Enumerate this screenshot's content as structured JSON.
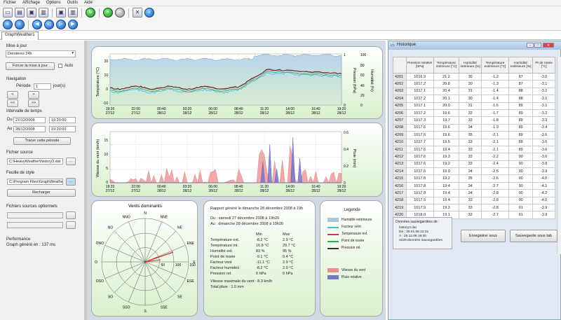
{
  "menu": [
    "Fichier",
    "Affichage",
    "Options",
    "Outils",
    "Aide"
  ],
  "tab": {
    "label": "GraphWeather1"
  },
  "left": {
    "mise_a_jour": "Mise à jour",
    "periode_select": "Dernières 24h",
    "forcer": "Forcer la mise à jour",
    "auto": "Auto",
    "navigation": "Navigation",
    "periode_label": "Période",
    "periode_value": "1",
    "periode_unit": "jour(s)",
    "nav_buttons": [
      "<",
      ">",
      "<<",
      ">>"
    ],
    "intervalle": "Intervalle de temps",
    "du_label": "Du",
    "du_date": "27/12/2008",
    "du_time": "19:20:00",
    "au_label": "Au",
    "au_date": "28/12/2008",
    "au_time": "19:20:00",
    "tracer": "Tracer cette période",
    "fichier_source": "Fichier source",
    "fichier_source_value": "C:\\HeavyWeather\\history3.dat",
    "feuille_style": "Feuille de style",
    "feuille_style_value": "C:\\Program Files\\GraphWeather",
    "recharger": "Recharger",
    "optionnels": "Fichiers sources optionnels",
    "performance": "Performance",
    "perf_value": "Graph généré en : 137 ms"
  },
  "chart1": {
    "ylabel_left": "Température (°C)",
    "ylabel_right1": "Pression (hPa)",
    "ylabel_right2": "Humidité (%)",
    "yticks_left": [
      "20",
      "10",
      "0",
      "-10"
    ],
    "yticks_right1": [
      "1",
      "0"
    ],
    "yticks_right2": [
      "100",
      "80",
      "60",
      "40",
      "20",
      "0"
    ],
    "xticks": [
      [
        "19:20",
        "27/12"
      ],
      [
        "22:00",
        "27/12"
      ],
      [
        "00:40",
        "28/12"
      ],
      [
        "03:20",
        "28/12"
      ],
      [
        "06:00",
        "28/12"
      ],
      [
        "08:40",
        "28/12"
      ],
      [
        "11:20",
        "28/12"
      ],
      [
        "14:00",
        "28/12"
      ],
      [
        "16:40",
        "28/12"
      ],
      [
        "19:20",
        "28/12"
      ]
    ]
  },
  "chart2": {
    "ylabel_left": "Vitesse du vent (km/h)",
    "ylabel_right": "Pluie (mm)",
    "yticks_left": [
      "15",
      "10",
      "5",
      "0"
    ],
    "yticks_right": [
      "0.6",
      "0.4",
      "0.2",
      "0"
    ],
    "xticks": [
      [
        "19:20",
        "27/12"
      ],
      [
        "22:00",
        "27/12"
      ],
      [
        "00:40",
        "28/12"
      ],
      [
        "03:20",
        "28/12"
      ],
      [
        "06:00",
        "28/12"
      ],
      [
        "08:40",
        "28/12"
      ],
      [
        "11:20",
        "28/12"
      ],
      [
        "14:00",
        "28/12"
      ],
      [
        "16:40",
        "28/12"
      ],
      [
        "19:20",
        "28/12"
      ]
    ]
  },
  "wind": {
    "title": "Vents dominants",
    "dirs": [
      "N",
      "NNE",
      "NE",
      "ENE",
      "E",
      "ESE",
      "SE",
      "SSE",
      "S",
      "SSO",
      "SO",
      "OSO",
      "O",
      "ONO",
      "NO",
      "NNO"
    ],
    "rings": [
      "50",
      "100",
      "150"
    ]
  },
  "report": {
    "title": "Rapport généré le dimanche 28 décembre 2008 à 19h",
    "du": "Du : samedi 27 décembre 2008 à 19h20",
    "au": "Au : dimanche 28 décembre 2008 à 19h20",
    "col_min": "Min",
    "col_max": "Max",
    "rows": [
      {
        "label": "Température ext.",
        "min": "-8.2 °C",
        "max": "2.9 °C"
      },
      {
        "label": "Température int.",
        "min": "16.8 °C",
        "max": "29.7 °C"
      },
      {
        "label": "Humidité ext.",
        "min": "83 %",
        "max": "95 %"
      },
      {
        "label": "Point de rosée",
        "min": "-9.1 °C",
        "max": "0.4 °C"
      },
      {
        "label": "Facteur vent",
        "min": "-11.1 °C",
        "max": "2.9 °C"
      },
      {
        "label": "Facteur humidex",
        "min": "-8.2 °C",
        "max": "2.9 °C"
      },
      {
        "label": "Pression rel.",
        "min": "0 hPa",
        "max": "0 hPa"
      }
    ],
    "vent_max": "Vitesse maximale du vent : 8.3 km/h",
    "pluie": "Total pluie : 1.0 mm"
  },
  "legend": {
    "title": "Legende",
    "items": [
      {
        "label": "Humidité extérieure",
        "color": "#a8c8e0"
      },
      {
        "label": "Facteur vent",
        "color": "#44bbdd"
      },
      {
        "label": "Température ext.",
        "color": "#cc3355"
      },
      {
        "label": "Point de rosée",
        "color": "#33aa55"
      },
      {
        "label": "Pression rel.",
        "color": "#333333"
      },
      {
        "label": "Vitesse du vent",
        "color": "#e89090"
      },
      {
        "label": "Pluie relative",
        "color": "#7777cc"
      }
    ]
  },
  "historique": {
    "title": "Historique",
    "headers": [
      "",
      "Pression relative [hPa]",
      "Température intérieure [°C]",
      "Humidité intérieure [%]",
      "Température extérieure [°C]",
      "Humidité extérieure [%]",
      "Pt de rosée [°C]"
    ],
    "rows": [
      [
        "4201",
        "1016.9",
        "21.2",
        "30",
        "-1.2",
        "87",
        "-3.0"
      ],
      [
        "4202",
        "1017.2",
        "20.8",
        "30",
        "-1.3",
        "87",
        "-3.1"
      ],
      [
        "4203",
        "1017.1",
        "20.4",
        "31",
        "-1.4",
        "88",
        "-3.1"
      ],
      [
        "4204",
        "1017.2",
        "20.1",
        "30",
        "-1.4",
        "88",
        "-3.1"
      ],
      [
        "4205",
        "1017.1",
        "20.0",
        "31",
        "-1.6",
        "89",
        "-3.1"
      ],
      [
        "4206",
        "1017.2",
        "19.6",
        "32",
        "-1.7",
        "89",
        "-3.2"
      ],
      [
        "4207",
        "1017.3",
        "19.7",
        "33",
        "-1.8",
        "89",
        "-3.3"
      ],
      [
        "4208",
        "1017.6",
        "19.6",
        "34",
        "-1.9",
        "89",
        "-3.4"
      ],
      [
        "4209",
        "1017.6",
        "19.6",
        "35",
        "-2.1",
        "89",
        "-3.6"
      ],
      [
        "4210",
        "1017.7",
        "19.5",
        "33",
        "-2.1",
        "89",
        "-3.6"
      ],
      [
        "4211",
        "1017.6",
        "19.4",
        "33",
        "-2.1",
        "89",
        "-3.6"
      ],
      [
        "4212",
        "1017.6",
        "19.3",
        "33",
        "-2.2",
        "90",
        "-3.6"
      ],
      [
        "4213",
        "1017.6",
        "19.2",
        "33",
        "-2.4",
        "90",
        "-3.8"
      ],
      [
        "4214",
        "1017.6",
        "19.0",
        "34",
        "-2.5",
        "90",
        "-3.9"
      ],
      [
        "4215",
        "1017.8",
        "19.2",
        "35",
        "-2.6",
        "90",
        "-4.0"
      ],
      [
        "4216",
        "1017.8",
        "19.4",
        "34",
        "-2.7",
        "90",
        "-4.1"
      ],
      [
        "4217",
        "1017.8",
        "19.4",
        "34",
        "-2.8",
        "90",
        "-4.2"
      ],
      [
        "4218",
        "1017.9",
        "19.4",
        "33",
        "-2.8",
        "90",
        "-4.0"
      ],
      [
        "4219",
        "1017.9",
        "19.3",
        "33",
        "-2.8",
        "91",
        "-3.9"
      ],
      [
        "4220",
        "1018.0",
        "19.1",
        "32",
        "-2.7",
        "91",
        "-3.9"
      ]
    ],
    "info_title": "Données sauvegardées de :",
    "info_lines": [
      "history3.dat",
      "De : 30.01.08 22:31",
      "A : 28.12.08 19:30",
      "4220 données sauvegardées"
    ],
    "btn_save": "Enregistrer sous",
    "btn_save_tab": "Sauvegarde sous tab"
  }
}
